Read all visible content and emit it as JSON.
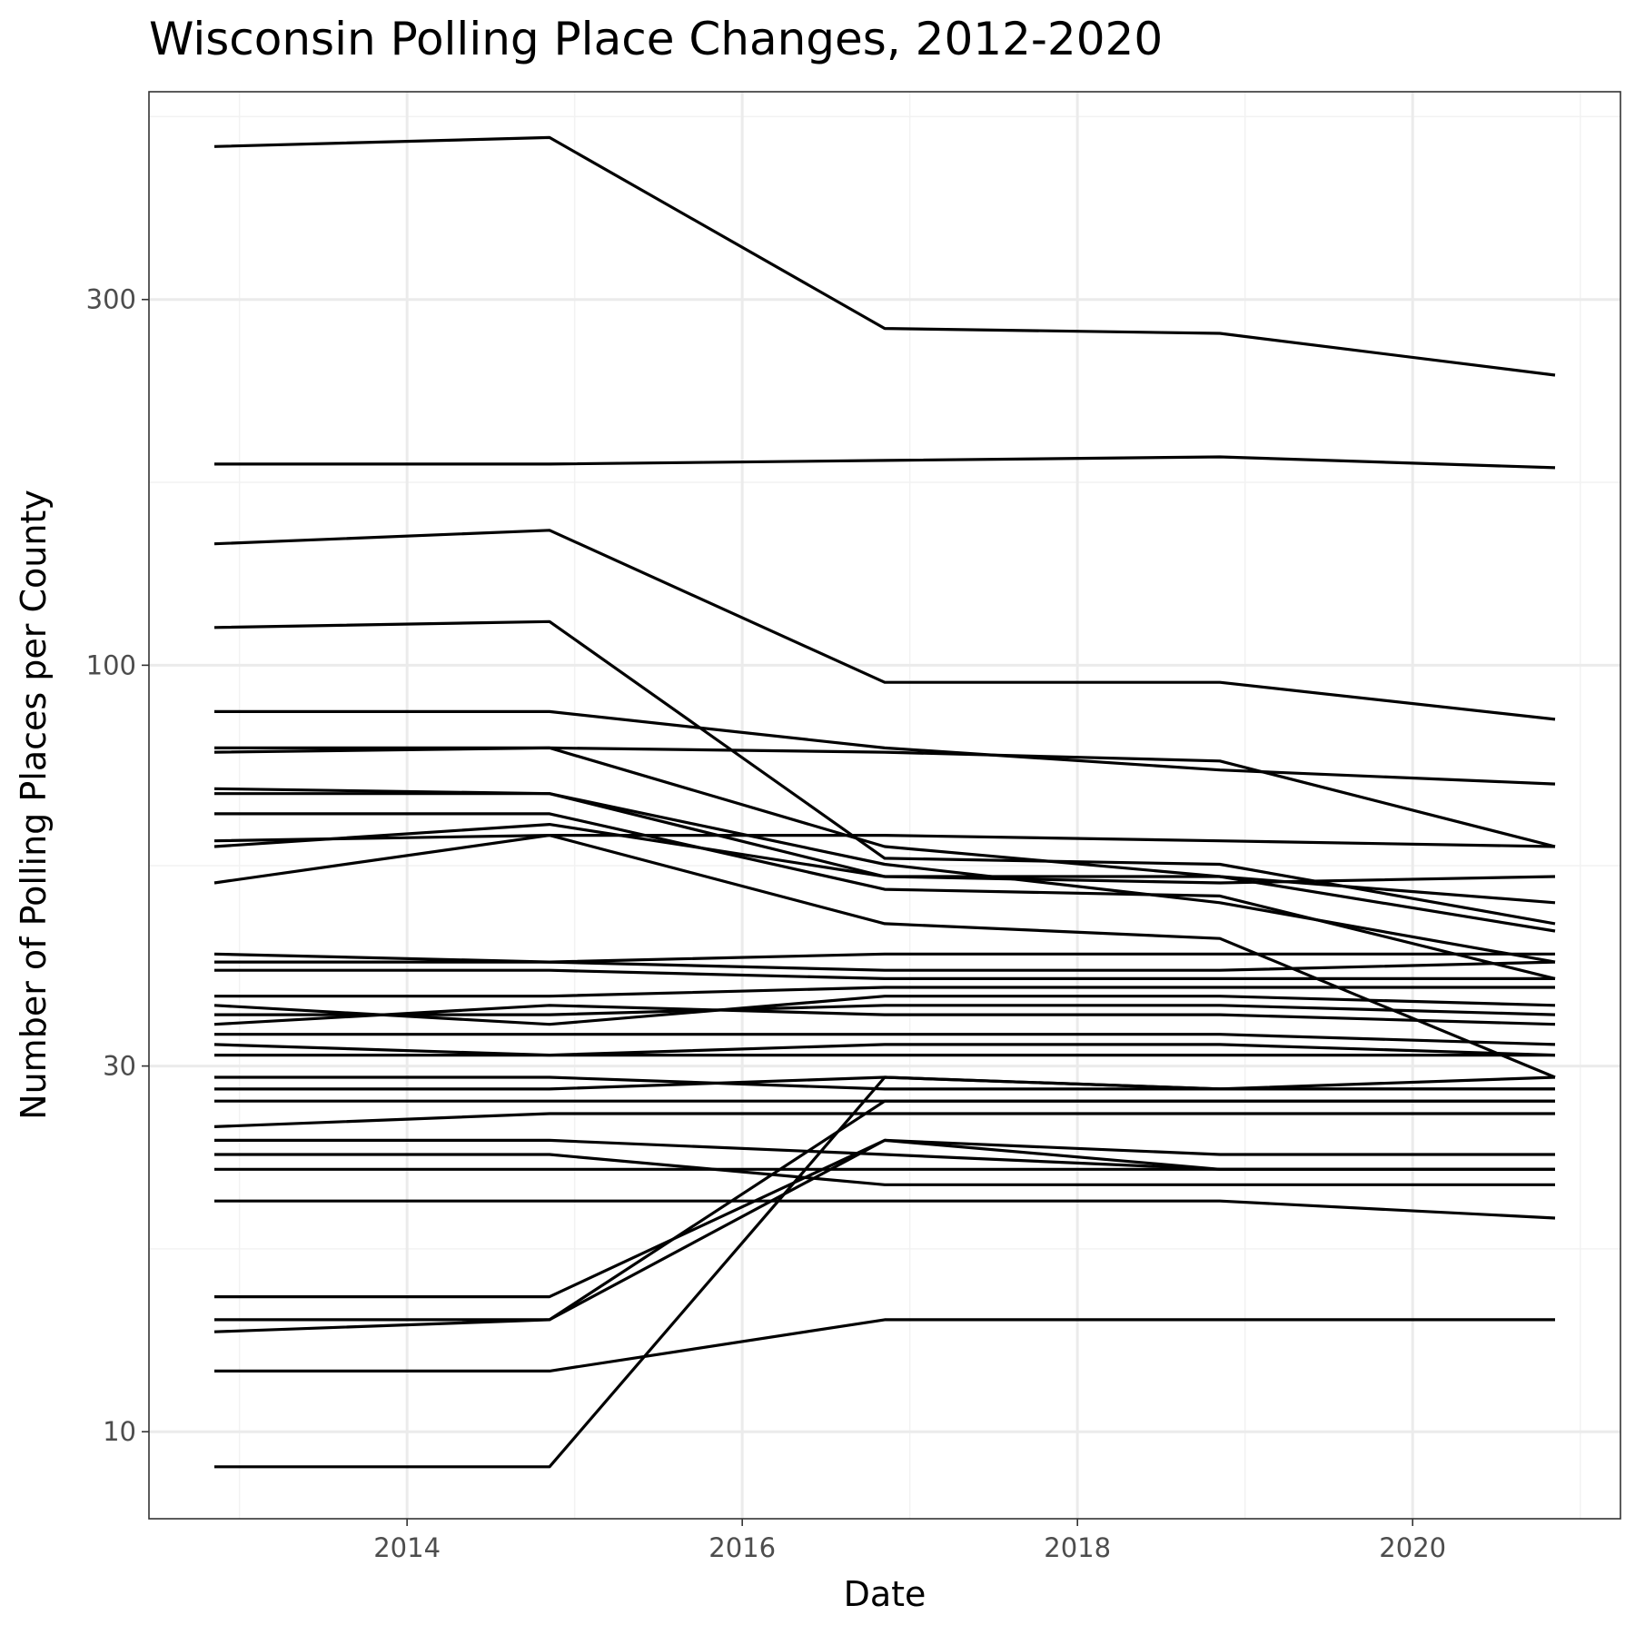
{
  "chart_data": {
    "type": "line",
    "title": "Wisconsin Polling Place Changes, 2012-2020",
    "xlabel": "Date",
    "ylabel": "Number of Polling Places per County",
    "y_scale": "log10",
    "xlim": [
      2012.46,
      2021.24
    ],
    "ylim": [
      7.7,
      560
    ],
    "x_ticks": [
      2014,
      2016,
      2018,
      2020
    ],
    "y_ticks": [
      10,
      30,
      100,
      300
    ],
    "grid": true,
    "legend": "none",
    "x": [
      2012.85,
      2014.85,
      2016.85,
      2018.85,
      2020.85
    ],
    "series": [
      {
        "values": [
          475,
          488,
          275,
          271,
          239
        ]
      },
      {
        "values": [
          183,
          183,
          185,
          187,
          181
        ]
      },
      {
        "values": [
          144,
          150,
          95,
          95,
          85
        ]
      },
      {
        "values": [
          112,
          114,
          56,
          55,
          46
        ]
      },
      {
        "values": [
          87,
          87,
          78,
          73,
          70
        ]
      },
      {
        "values": [
          78,
          78,
          77,
          75,
          58
        ]
      },
      {
        "values": [
          77,
          78,
          58,
          53,
          45
        ]
      },
      {
        "values": [
          69,
          68,
          53,
          53,
          49
        ]
      },
      {
        "values": [
          68,
          68,
          55,
          49,
          41
        ]
      },
      {
        "values": [
          64,
          64,
          51,
          50,
          39
        ]
      },
      {
        "values": [
          59,
          60,
          60,
          59,
          58
        ]
      },
      {
        "values": [
          58,
          62,
          53,
          52,
          53
        ]
      },
      {
        "values": [
          52,
          60,
          46,
          44,
          29
        ]
      },
      {
        "values": [
          42,
          41,
          42,
          42,
          42
        ]
      },
      {
        "values": [
          41,
          41,
          40,
          40,
          41
        ]
      },
      {
        "values": [
          40,
          40,
          39,
          39,
          39
        ]
      },
      {
        "values": [
          37,
          37,
          38,
          38,
          38
        ]
      },
      {
        "values": [
          36,
          34,
          37,
          37,
          36
        ]
      },
      {
        "values": [
          35,
          35,
          36,
          36,
          35
        ]
      },
      {
        "values": [
          34,
          36,
          35,
          35,
          34
        ]
      },
      {
        "values": [
          33,
          33,
          33,
          33,
          32
        ]
      },
      {
        "values": [
          32,
          31,
          32,
          32,
          31
        ]
      },
      {
        "values": [
          31,
          31,
          31,
          31,
          31
        ]
      },
      {
        "values": [
          29,
          29,
          28,
          28,
          29
        ]
      },
      {
        "values": [
          28,
          28,
          29,
          28,
          28
        ]
      },
      {
        "values": [
          27,
          27,
          27,
          27,
          27
        ]
      },
      {
        "values": [
          25,
          26,
          26,
          26,
          26
        ]
      },
      {
        "values": [
          24,
          24,
          23,
          22,
          22
        ]
      },
      {
        "values": [
          23,
          23,
          21,
          21,
          21
        ]
      },
      {
        "values": [
          22,
          22,
          22,
          22,
          22
        ]
      },
      {
        "values": [
          20,
          20,
          20,
          20,
          19
        ]
      },
      {
        "values": [
          15,
          15,
          24,
          23,
          23
        ]
      },
      {
        "values": [
          14,
          14,
          24,
          22,
          22
        ]
      },
      {
        "values": [
          13.5,
          14,
          27,
          27,
          27
        ]
      },
      {
        "values": [
          12,
          12,
          14,
          14,
          14
        ]
      },
      {
        "values": [
          9,
          9,
          29,
          28,
          28
        ]
      }
    ]
  }
}
